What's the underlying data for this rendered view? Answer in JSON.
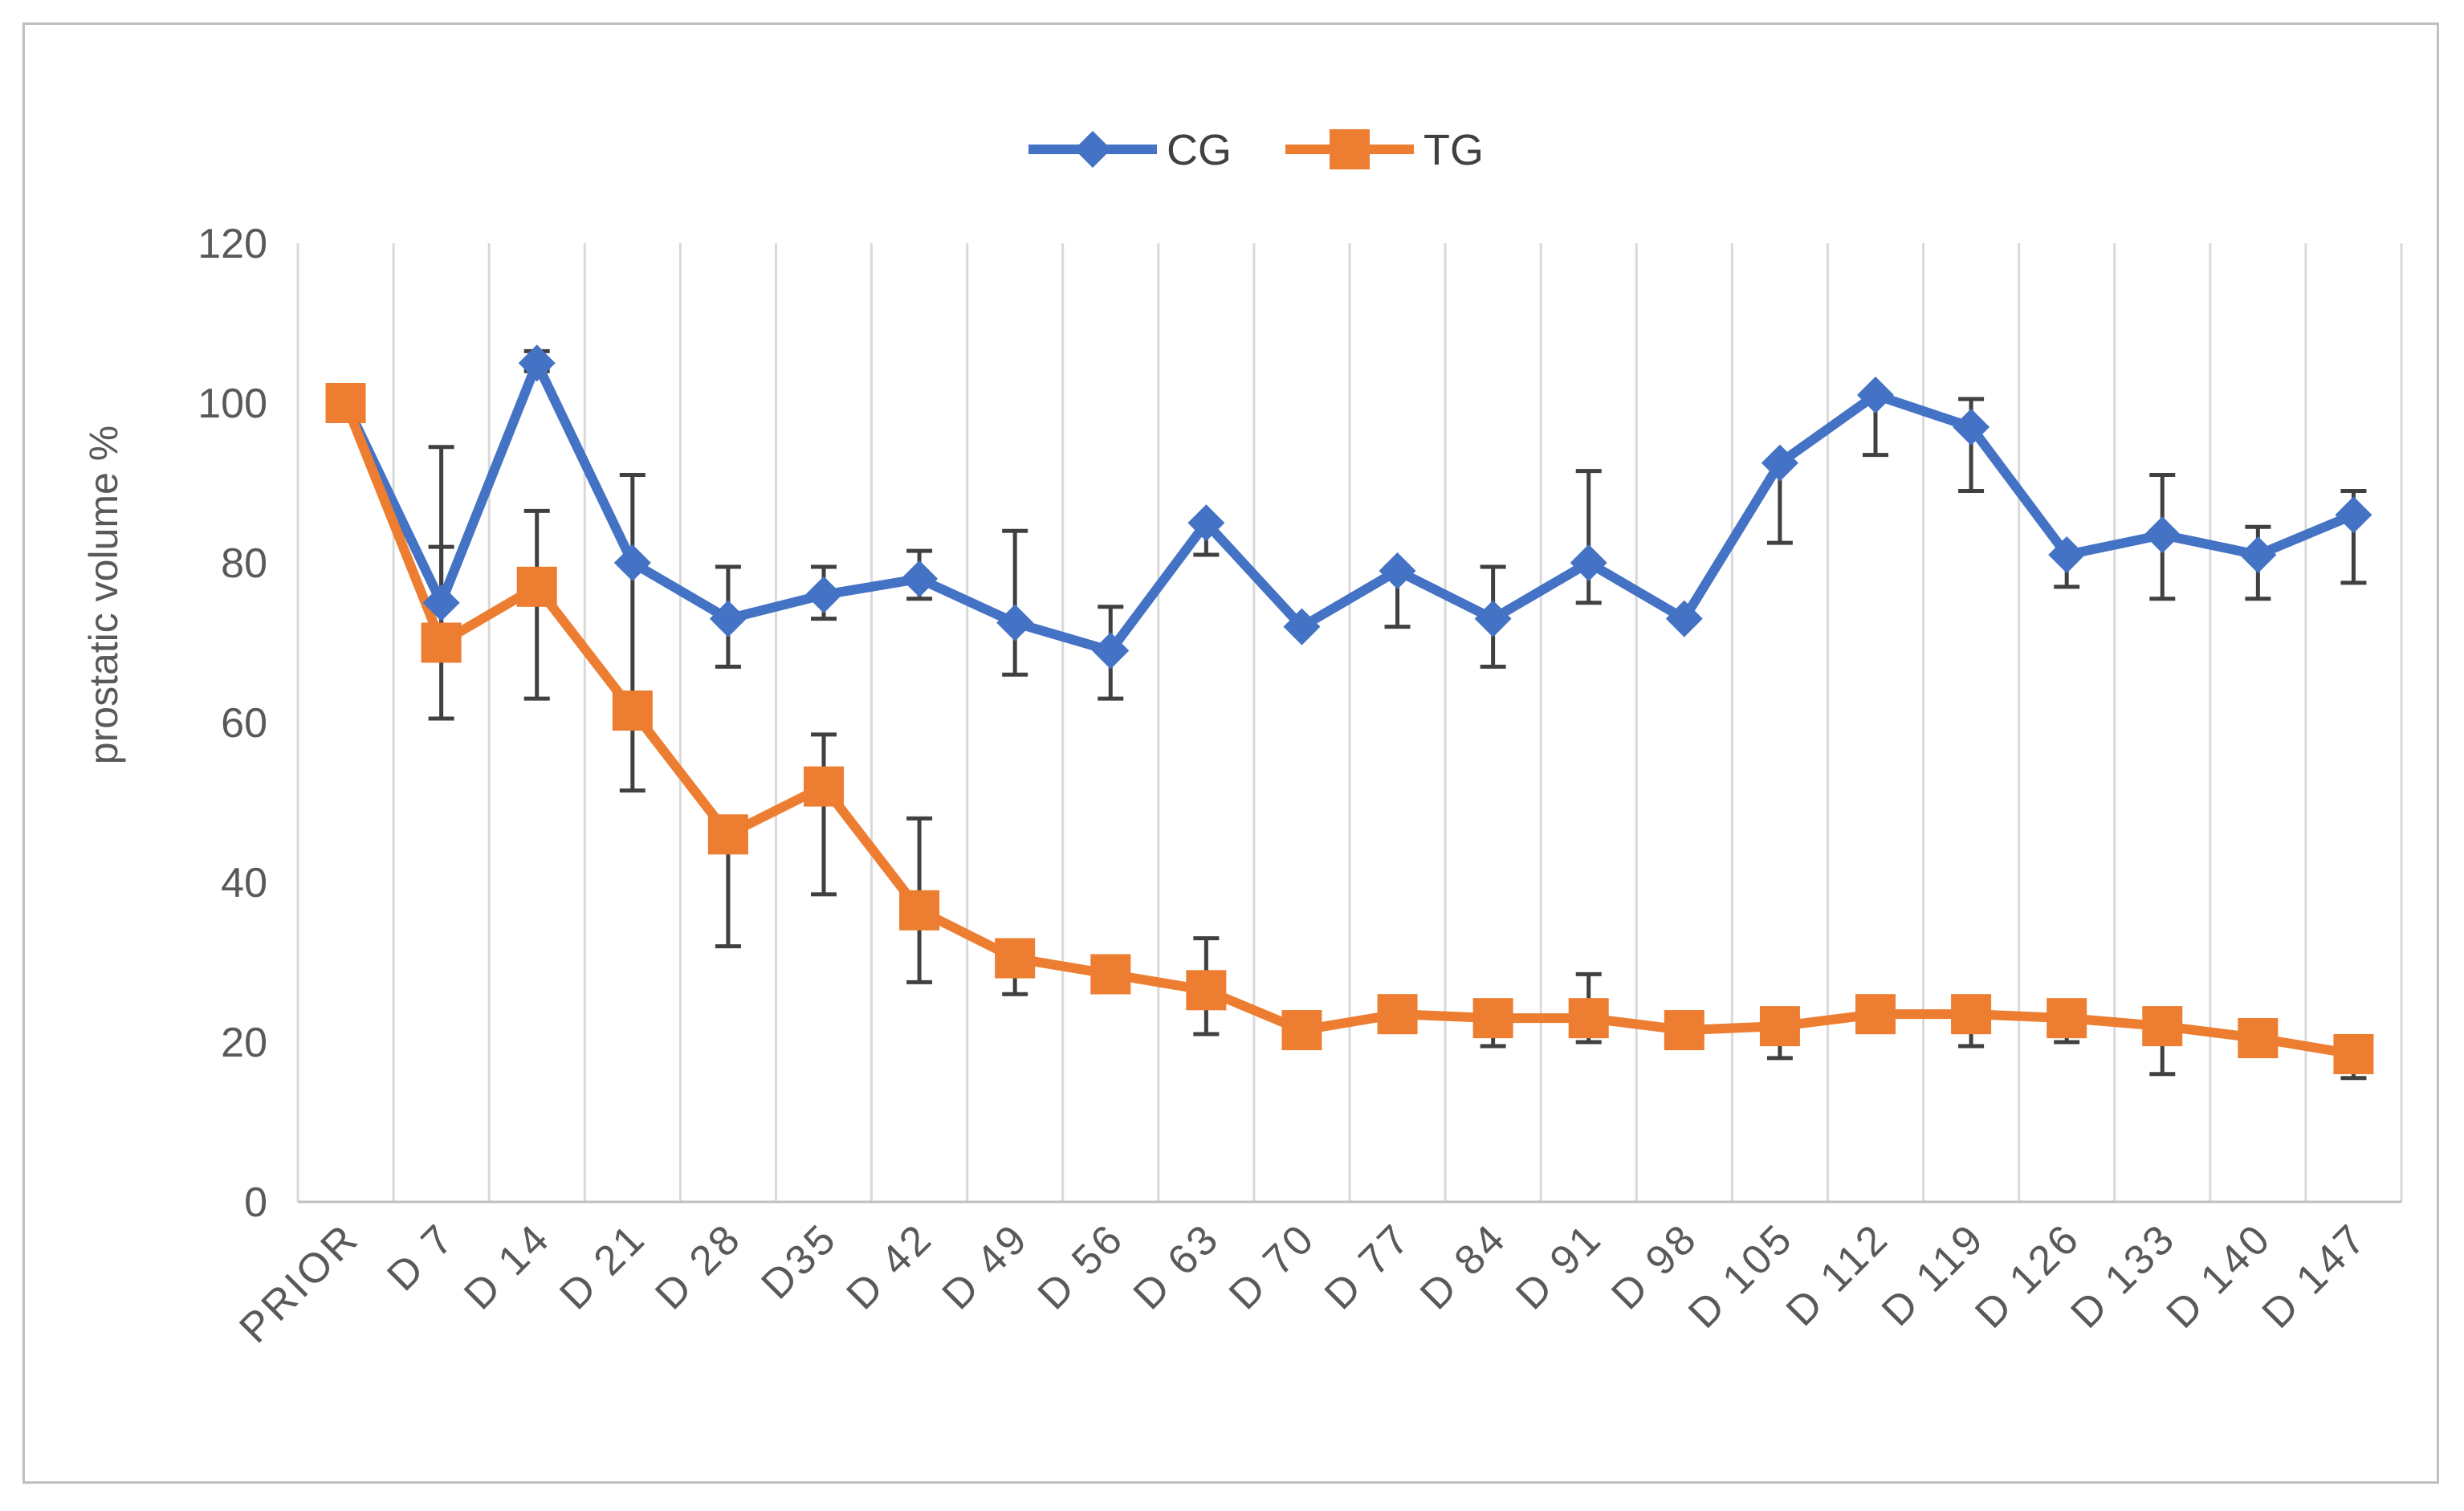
{
  "chart_data": {
    "type": "line",
    "title": "",
    "xlabel": "",
    "ylabel": "prostatic volume %",
    "ylim": [
      0,
      120
    ],
    "yticks": [
      0,
      20,
      40,
      60,
      80,
      100,
      120
    ],
    "grid": "vertical",
    "legend_position": "top-center",
    "categories": [
      "PRIOR",
      "D 7",
      "D 14",
      "D 21",
      "D 28",
      "D35",
      "D 42",
      "D 49",
      "D 56",
      "D 63",
      "D 70",
      "D 77",
      "D 84",
      "D 91",
      "D 98",
      "D 105",
      "D 112",
      "D 119",
      "D 126",
      "D 133",
      "D 140",
      "D 147"
    ],
    "series": [
      {
        "name": "CG",
        "color": "#4472c4",
        "marker": "diamond",
        "values": [
          100,
          75,
          105,
          80,
          73,
          76,
          78,
          72.5,
          69,
          85,
          72,
          79,
          73,
          80,
          73,
          92.5,
          101,
          97,
          81,
          83.5,
          81,
          86
        ],
        "error_low": [
          null,
          68,
          104,
          63,
          67,
          73,
          75.5,
          66,
          63,
          81,
          null,
          72,
          67,
          75,
          null,
          82.5,
          93.5,
          89,
          77,
          75.5,
          75.5,
          77.5
        ],
        "error_high": [
          null,
          94.5,
          106.5,
          91,
          79.5,
          79.5,
          81.5,
          84,
          74.5,
          85,
          null,
          79.5,
          79.5,
          91.5,
          null,
          92.5,
          101,
          100.5,
          81,
          91,
          84.5,
          89
        ]
      },
      {
        "name": "TG",
        "color": "#ed7d31",
        "marker": "square",
        "values": [
          100,
          70,
          77,
          61.5,
          46,
          52,
          36.5,
          30.5,
          28.5,
          26.5,
          21.5,
          23.5,
          23,
          23,
          21.5,
          22,
          23.5,
          23.5,
          23,
          22,
          20.5,
          18.5
        ],
        "error_low": [
          null,
          60.5,
          63,
          51.5,
          32,
          38.5,
          27.5,
          26,
          27,
          21,
          null,
          null,
          19.5,
          20,
          null,
          18,
          null,
          19.5,
          20,
          16,
          null,
          15.5
        ],
        "error_high": [
          null,
          82,
          86.5,
          61.5,
          46,
          58.5,
          48,
          30.5,
          30.5,
          33,
          null,
          null,
          23,
          28.5,
          null,
          22,
          null,
          23.5,
          23,
          22,
          null,
          18.5
        ]
      }
    ]
  }
}
